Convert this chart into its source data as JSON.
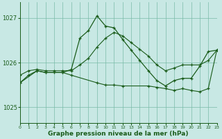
{
  "title": "Graphe pression niveau de la mer (hPa)",
  "bg_color": "#c8e8e4",
  "grid_color": "#7abba8",
  "line_color": "#1a5c1a",
  "xlim": [
    0,
    23
  ],
  "ylim": [
    1024.65,
    1027.35
  ],
  "yticks": [
    1025,
    1026,
    1027
  ],
  "xticks": [
    0,
    1,
    2,
    3,
    4,
    5,
    6,
    7,
    8,
    9,
    10,
    11,
    12,
    13,
    14,
    15,
    16,
    17,
    18,
    19,
    20,
    21,
    22,
    23
  ],
  "line1_x": [
    0,
    1,
    2,
    3,
    4,
    5,
    6,
    7,
    8,
    9,
    10,
    11,
    12,
    13,
    14,
    15,
    16,
    17,
    18,
    19,
    20,
    21,
    22,
    23
  ],
  "line1_y": [
    1025.72,
    1025.82,
    1025.85,
    1025.82,
    1025.82,
    1025.82,
    1025.82,
    1025.95,
    1026.1,
    1026.35,
    1026.55,
    1026.68,
    1026.6,
    1026.45,
    1026.3,
    1026.15,
    1025.95,
    1025.82,
    1025.88,
    1025.95,
    1025.95,
    1025.95,
    1026.05,
    1026.28
  ],
  "line2_x": [
    0,
    1,
    2,
    3,
    4,
    5,
    6,
    7,
    8,
    9,
    10,
    11,
    12,
    13,
    14,
    15,
    16,
    17,
    18,
    19,
    20,
    21,
    22,
    23
  ],
  "line2_y": [
    1025.55,
    1025.72,
    1025.82,
    1025.78,
    1025.78,
    1025.78,
    1025.85,
    1026.55,
    1026.72,
    1027.05,
    1026.82,
    1026.78,
    1026.52,
    1026.28,
    1026.05,
    1025.82,
    1025.6,
    1025.48,
    1025.6,
    1025.65,
    1025.65,
    1025.92,
    1026.25,
    1026.28
  ],
  "line3_x": [
    0,
    2,
    3,
    5,
    6,
    9,
    10,
    11,
    12,
    15,
    16,
    17,
    18,
    19,
    20,
    21,
    22,
    23
  ],
  "line3_y": [
    1025.55,
    1025.82,
    1025.78,
    1025.78,
    1025.72,
    1025.55,
    1025.5,
    1025.5,
    1025.48,
    1025.48,
    1025.45,
    1025.42,
    1025.38,
    1025.42,
    1025.38,
    1025.35,
    1025.42,
    1026.28
  ]
}
